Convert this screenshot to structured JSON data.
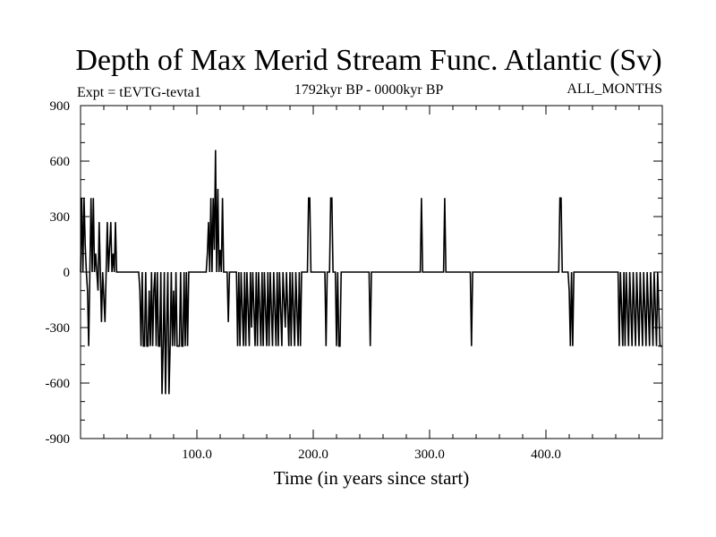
{
  "chart_data": {
    "type": "line",
    "title": "Depth of Max Merid Stream Func. Atlantic (Sv)",
    "subtitle_left": "Expt = tEVTG-tevta1",
    "subtitle_center": "1792kyr BP - 0000kyr BP",
    "subtitle_right": "ALL_MONTHS",
    "xlabel": "Time (in years since start)",
    "ylabel": "",
    "xlim": [
      0,
      500
    ],
    "ylim": [
      -900,
      900
    ],
    "x_ticks": [
      100,
      200,
      300,
      400
    ],
    "x_tick_labels": [
      "100.0",
      "200.0",
      "300.0",
      "400.0"
    ],
    "y_ticks": [
      -900,
      -600,
      -300,
      0,
      300,
      600,
      900
    ],
    "y_tick_labels": [
      "-900",
      "-600",
      "-300",
      "0",
      "300",
      "600",
      "900"
    ],
    "series": [
      {
        "name": "Depth of Max Merid Stream Func.",
        "color": "#000000",
        "points": [
          [
            0,
            0
          ],
          [
            1,
            400
          ],
          [
            2,
            0
          ],
          [
            3,
            400
          ],
          [
            4,
            150
          ],
          [
            5,
            0
          ],
          [
            6,
            -100
          ],
          [
            7,
            -400
          ],
          [
            8,
            0
          ],
          [
            9,
            400
          ],
          [
            10,
            0
          ],
          [
            11,
            400
          ],
          [
            12,
            0
          ],
          [
            13,
            100
          ],
          [
            14,
            0
          ],
          [
            15,
            -100
          ],
          [
            16,
            270
          ],
          [
            17,
            0
          ],
          [
            18,
            -270
          ],
          [
            19,
            0
          ],
          [
            21,
            -270
          ],
          [
            22,
            0
          ],
          [
            23,
            270
          ],
          [
            24,
            0
          ],
          [
            26,
            270
          ],
          [
            27,
            0
          ],
          [
            28,
            100
          ],
          [
            29,
            0
          ],
          [
            30,
            270
          ],
          [
            31,
            0
          ],
          [
            50,
            0
          ],
          [
            51,
            -100
          ],
          [
            52,
            -400
          ],
          [
            53,
            0
          ],
          [
            54,
            -400
          ],
          [
            55,
            -400
          ],
          [
            56,
            0
          ],
          [
            57,
            -400
          ],
          [
            58,
            -400
          ],
          [
            59,
            -100
          ],
          [
            60,
            -400
          ],
          [
            61,
            0
          ],
          [
            62,
            -400
          ],
          [
            63,
            -100
          ],
          [
            64,
            0
          ],
          [
            65,
            -400
          ],
          [
            66,
            0
          ],
          [
            67,
            -400
          ],
          [
            68,
            -400
          ],
          [
            69,
            0
          ],
          [
            70,
            -660
          ],
          [
            71,
            -400
          ],
          [
            72,
            0
          ],
          [
            73,
            -660
          ],
          [
            74,
            -300
          ],
          [
            75,
            0
          ],
          [
            76,
            -660
          ],
          [
            77,
            -400
          ],
          [
            78,
            0
          ],
          [
            79,
            -400
          ],
          [
            80,
            -100
          ],
          [
            81,
            -400
          ],
          [
            82,
            0
          ],
          [
            83,
            -400
          ],
          [
            84,
            -400
          ],
          [
            85,
            -400
          ],
          [
            86,
            0
          ],
          [
            87,
            -400
          ],
          [
            88,
            -400
          ],
          [
            89,
            0
          ],
          [
            90,
            -400
          ],
          [
            91,
            0
          ],
          [
            92,
            -400
          ],
          [
            93,
            0
          ],
          [
            108,
            0
          ],
          [
            109,
            100
          ],
          [
            110,
            270
          ],
          [
            111,
            0
          ],
          [
            112,
            400
          ],
          [
            113,
            0
          ],
          [
            114,
            400
          ],
          [
            115,
            120
          ],
          [
            116,
            660
          ],
          [
            117,
            0
          ],
          [
            118,
            450
          ],
          [
            119,
            0
          ],
          [
            120,
            120
          ],
          [
            121,
            0
          ],
          [
            122,
            400
          ],
          [
            123,
            0
          ],
          [
            126,
            0
          ],
          [
            127,
            -270
          ],
          [
            128,
            0
          ],
          [
            134,
            0
          ],
          [
            135,
            -400
          ],
          [
            136,
            0
          ],
          [
            137,
            -400
          ],
          [
            138,
            0
          ],
          [
            140,
            -400
          ],
          [
            141,
            0
          ],
          [
            142,
            -400
          ],
          [
            143,
            0
          ],
          [
            145,
            -400
          ],
          [
            146,
            0
          ],
          [
            147,
            -300
          ],
          [
            148,
            0
          ],
          [
            150,
            -400
          ],
          [
            151,
            0
          ],
          [
            152,
            -400
          ],
          [
            153,
            0
          ],
          [
            155,
            -400
          ],
          [
            156,
            0
          ],
          [
            157,
            -400
          ],
          [
            158,
            0
          ],
          [
            160,
            -400
          ],
          [
            161,
            0
          ],
          [
            162,
            -400
          ],
          [
            163,
            0
          ],
          [
            165,
            -400
          ],
          [
            166,
            0
          ],
          [
            168,
            -400
          ],
          [
            169,
            0
          ],
          [
            170,
            -400
          ],
          [
            171,
            0
          ],
          [
            173,
            -400
          ],
          [
            174,
            0
          ],
          [
            176,
            -300
          ],
          [
            177,
            0
          ],
          [
            179,
            -400
          ],
          [
            180,
            0
          ],
          [
            181,
            -400
          ],
          [
            182,
            0
          ],
          [
            184,
            -400
          ],
          [
            185,
            0
          ],
          [
            187,
            -400
          ],
          [
            188,
            0
          ],
          [
            189,
            -400
          ],
          [
            190,
            0
          ],
          [
            195,
            0
          ],
          [
            196,
            400
          ],
          [
            197,
            400
          ],
          [
            198,
            0
          ],
          [
            210,
            0
          ],
          [
            211,
            -400
          ],
          [
            212,
            0
          ],
          [
            214,
            0
          ],
          [
            215,
            400
          ],
          [
            216,
            400
          ],
          [
            217,
            0
          ],
          [
            219,
            0
          ],
          [
            220,
            -400
          ],
          [
            221,
            0
          ],
          [
            222,
            -400
          ],
          [
            223,
            -400
          ],
          [
            224,
            0
          ],
          [
            248,
            0
          ],
          [
            249,
            -400
          ],
          [
            250,
            0
          ],
          [
            292,
            0
          ],
          [
            293,
            400
          ],
          [
            294,
            0
          ],
          [
            312,
            0
          ],
          [
            313,
            400
          ],
          [
            314,
            0
          ],
          [
            335,
            0
          ],
          [
            336,
            -400
          ],
          [
            337,
            0
          ],
          [
            411,
            0
          ],
          [
            412,
            400
          ],
          [
            413,
            400
          ],
          [
            414,
            0
          ],
          [
            419,
            0
          ],
          [
            420,
            -100
          ],
          [
            421,
            -400
          ],
          [
            422,
            0
          ],
          [
            423,
            -400
          ],
          [
            424,
            0
          ],
          [
            462,
            0
          ],
          [
            463,
            -400
          ],
          [
            464,
            0
          ],
          [
            466,
            -400
          ],
          [
            467,
            0
          ],
          [
            468,
            -400
          ],
          [
            469,
            0
          ],
          [
            471,
            -400
          ],
          [
            472,
            0
          ],
          [
            474,
            -400
          ],
          [
            475,
            0
          ],
          [
            477,
            -400
          ],
          [
            478,
            0
          ],
          [
            480,
            -400
          ],
          [
            481,
            0
          ],
          [
            483,
            -400
          ],
          [
            484,
            0
          ],
          [
            486,
            -400
          ],
          [
            487,
            0
          ],
          [
            489,
            -400
          ],
          [
            490,
            0
          ],
          [
            492,
            -400
          ],
          [
            493,
            0
          ],
          [
            495,
            -400
          ],
          [
            496,
            0
          ],
          [
            498,
            -400
          ],
          [
            499,
            -400
          ],
          [
            500,
            -400
          ]
        ]
      }
    ]
  }
}
